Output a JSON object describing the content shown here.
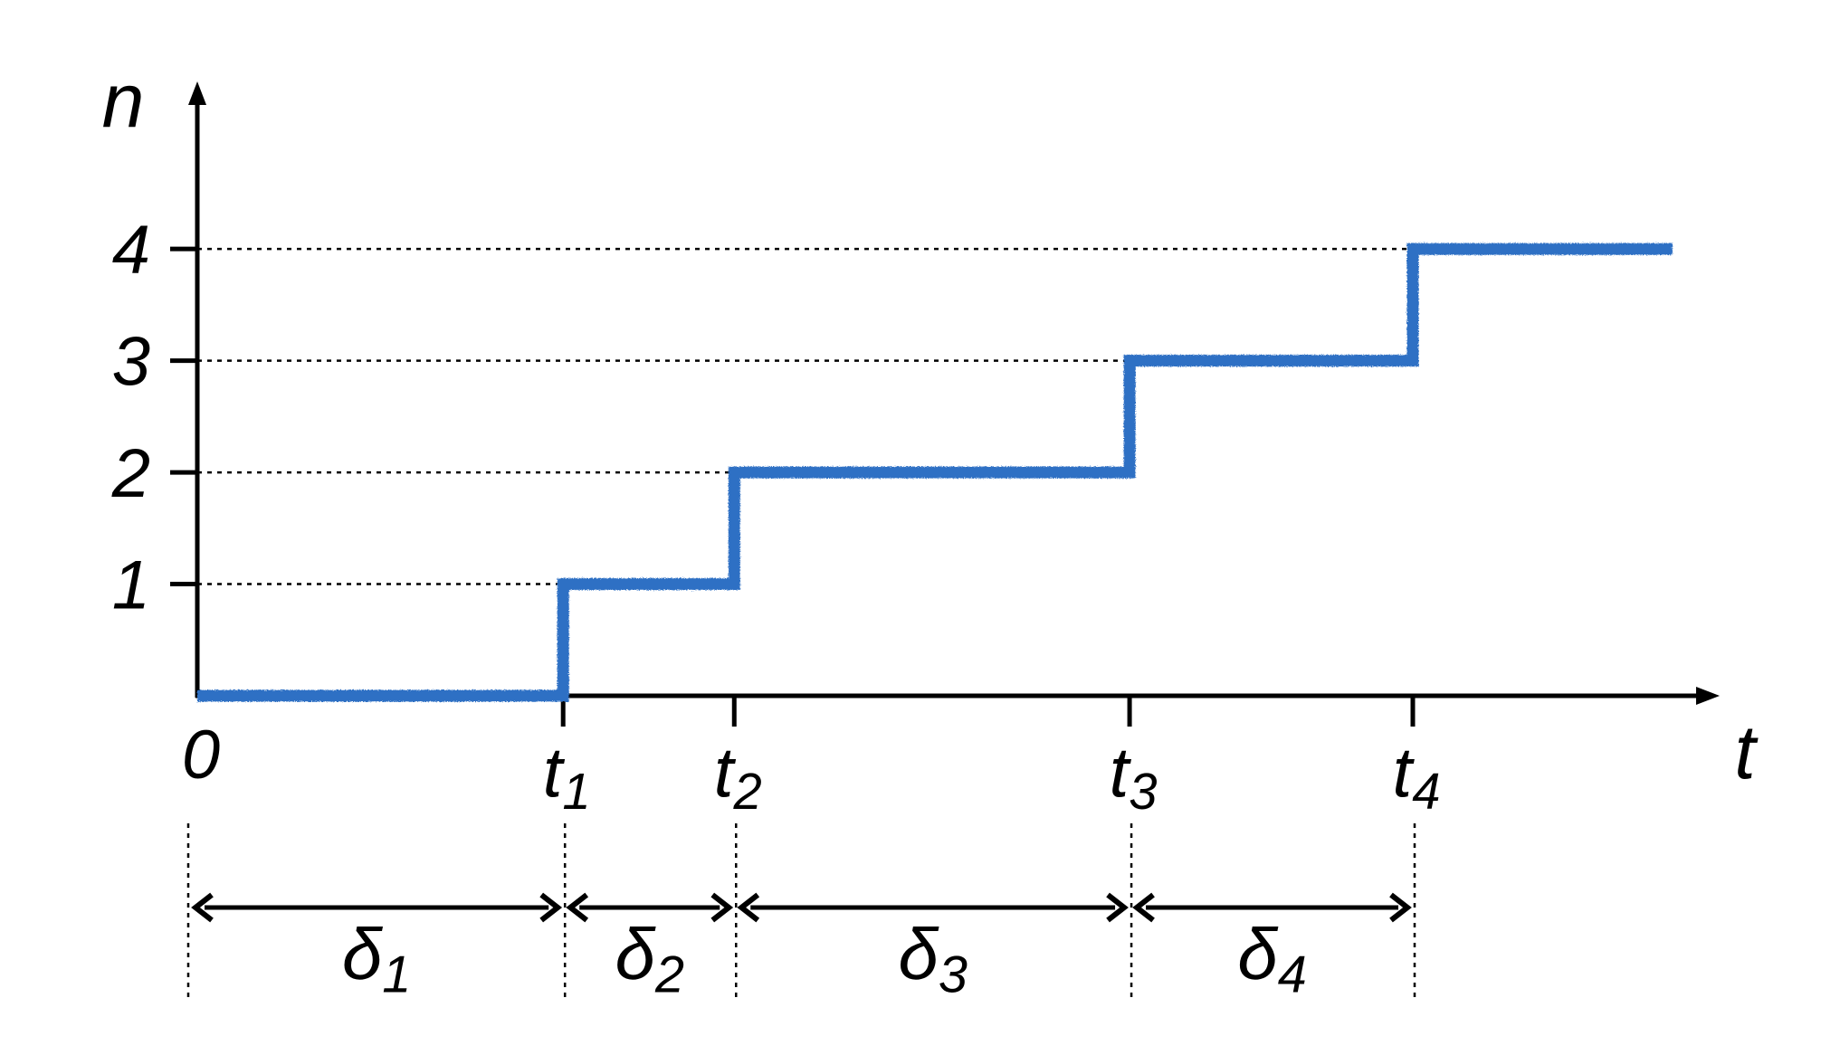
{
  "chart_data": {
    "type": "line",
    "step": true,
    "xlabel": "t",
    "ylabel": "n",
    "yticks": [
      "1",
      "2",
      "3",
      "4"
    ],
    "xticks": [
      {
        "base": "t",
        "sub": "1"
      },
      {
        "base": "t",
        "sub": "2"
      },
      {
        "base": "t",
        "sub": "3"
      },
      {
        "base": "t",
        "sub": "4"
      }
    ],
    "origin_label": "0",
    "event_times": [
      3.1,
      4.55,
      7.9,
      10.3
    ],
    "x_end": 12.5,
    "series": [
      {
        "x": [
          0,
          3.1,
          3.1,
          4.55,
          4.55,
          7.9,
          7.9,
          10.3,
          10.3,
          12.5
        ],
        "y": [
          0,
          0,
          1,
          1,
          2,
          2,
          3,
          3,
          4,
          4
        ]
      }
    ],
    "xlim": [
      0,
      12.9
    ],
    "ylim": [
      0,
      5.5
    ],
    "line_color": "#2f6fc4",
    "intervals": [
      {
        "base": "δ",
        "sub": "1"
      },
      {
        "base": "δ",
        "sub": "2"
      },
      {
        "base": "δ",
        "sub": "3"
      },
      {
        "base": "δ",
        "sub": "4"
      }
    ]
  }
}
